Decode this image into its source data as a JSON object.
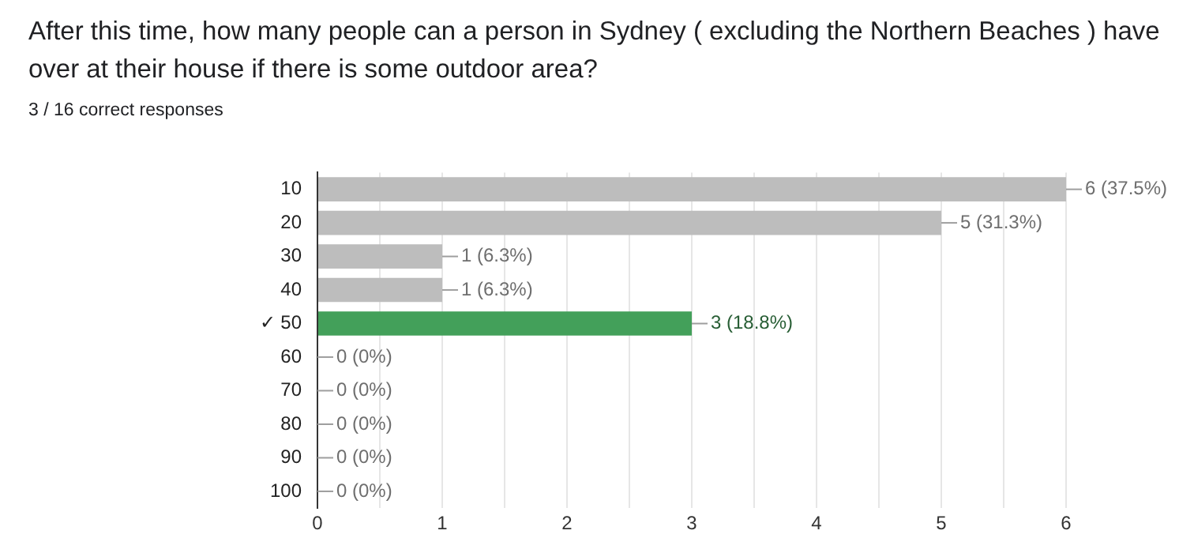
{
  "chart_data": {
    "type": "bar",
    "orientation": "horizontal",
    "title": "After this time, how many people can a person in Sydney ( excluding the Northern Beaches ) have over at their house if there is some outdoor area?",
    "subtitle": "3 / 16 correct responses",
    "categories": [
      "10",
      "20",
      "30",
      "40",
      "✓ 50",
      "60",
      "70",
      "80",
      "90",
      "100"
    ],
    "values": [
      6,
      5,
      1,
      1,
      3,
      0,
      0,
      0,
      0,
      0
    ],
    "colors": [
      "#bdbdbd",
      "#bdbdbd",
      "#bdbdbd",
      "#bdbdbd",
      "#43a05a",
      "#bdbdbd",
      "#bdbdbd",
      "#bdbdbd",
      "#bdbdbd",
      "#bdbdbd"
    ],
    "value_labels": [
      "6 (37.5%)",
      "5 (31.3%)",
      "1 (6.3%)",
      "1 (6.3%)",
      "3 (18.8%)",
      "0 (0%)",
      "0 (0%)",
      "0 (0%)",
      "0 (0%)",
      "0 (0%)"
    ],
    "xlim": [
      0,
      6
    ],
    "xticks": [
      0,
      {
        "value": 0.5,
        "label": null
      },
      1,
      {
        "value": 1.5,
        "label": null
      },
      2,
      {
        "value": 2.5,
        "label": null
      },
      3,
      {
        "value": 3.5,
        "label": null
      },
      4,
      {
        "value": 4.5,
        "label": null
      },
      5,
      {
        "value": 5.5,
        "label": null
      },
      6
    ],
    "grid": "x",
    "legend": false
  }
}
